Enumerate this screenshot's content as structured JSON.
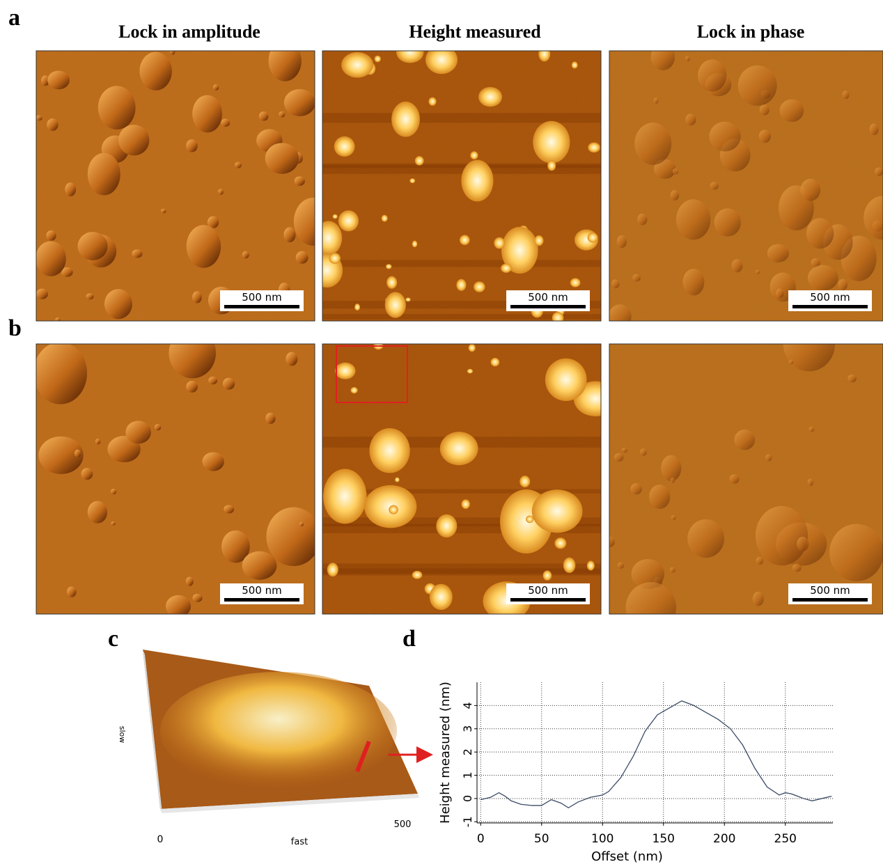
{
  "panel_labels": [
    "a",
    "b",
    "c",
    "d"
  ],
  "column_titles": [
    "Lock in amplitude",
    "Height measured",
    "Lock in phase"
  ],
  "scale_bar": "500 nm",
  "panel_c": {
    "x_start": "0",
    "x_end": "500",
    "x_label": "fast",
    "y_label": "slow"
  },
  "chart_data": {
    "type": "line",
    "x_label": "Offset (nm)",
    "y_label": "Height measured (nm)",
    "x": [
      0,
      8,
      15,
      20,
      25,
      33,
      42,
      50,
      58,
      66,
      72,
      80,
      90,
      100,
      105,
      115,
      125,
      135,
      145,
      155,
      165,
      175,
      185,
      195,
      205,
      215,
      225,
      235,
      245,
      250,
      255,
      265,
      272,
      280,
      288
    ],
    "values": [
      -0.05,
      0.05,
      0.25,
      0.1,
      -0.1,
      -0.25,
      -0.3,
      -0.3,
      -0.05,
      -0.2,
      -0.4,
      -0.15,
      0.05,
      0.15,
      0.3,
      0.9,
      1.8,
      2.9,
      3.6,
      3.9,
      4.2,
      4.0,
      3.7,
      3.4,
      3.0,
      2.3,
      1.3,
      0.5,
      0.15,
      0.25,
      0.2,
      0.0,
      -0.1,
      0.0,
      0.1
    ],
    "color": "#3a4a66",
    "xlim": [
      -3,
      289
    ],
    "ylim": [
      -1.05,
      5
    ],
    "xticks": [
      0,
      50,
      100,
      150,
      200,
      250
    ],
    "yticks": [
      -1,
      0,
      1,
      2,
      3,
      4
    ],
    "grid": true
  }
}
